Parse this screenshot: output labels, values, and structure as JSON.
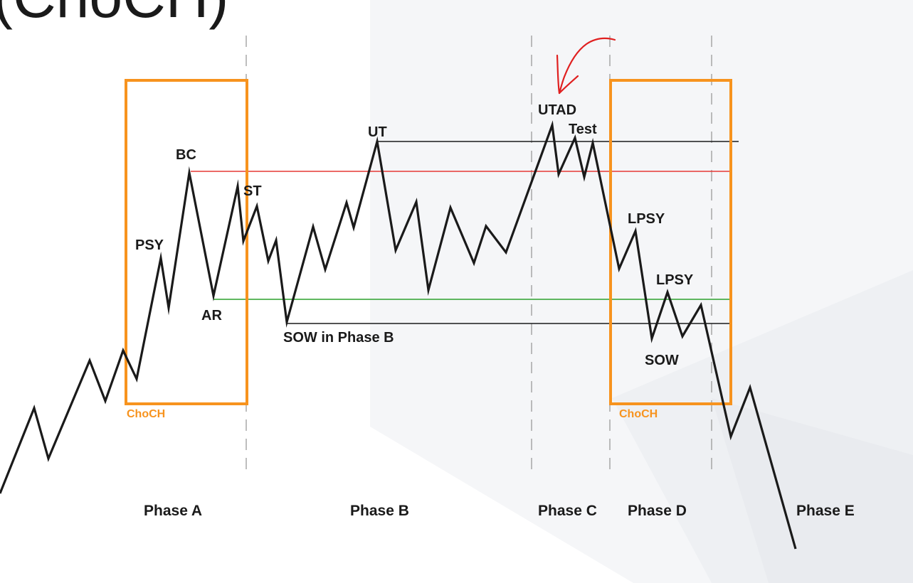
{
  "title": "(ChoCH)",
  "colors": {
    "price_line": "#1a1a1a",
    "box": "#f7931e",
    "resistance": "#e53935",
    "support": "#2ca02c",
    "level": "#1a1a1a",
    "divider": "#9a9a9a",
    "arrow": "#e02020",
    "background_shade": "#f4f5f7"
  },
  "boxes": [
    {
      "label": "ChoCH"
    },
    {
      "label": "ChoCH"
    }
  ],
  "labels": {
    "psy": "PSY",
    "bc": "BC",
    "ar": "AR",
    "st": "ST",
    "ut": "UT",
    "sow_phase_b": "SOW in Phase B",
    "utad": "UTAD",
    "test": "Test",
    "lpsy_1": "LPSY",
    "lpsy_2": "LPSY",
    "sow": "SOW"
  },
  "phases": [
    "Phase A",
    "Phase B",
    "Phase C",
    "Phase D",
    "Phase E"
  ],
  "annotation": {
    "icon": "hand-drawn-arrow-icon"
  }
}
